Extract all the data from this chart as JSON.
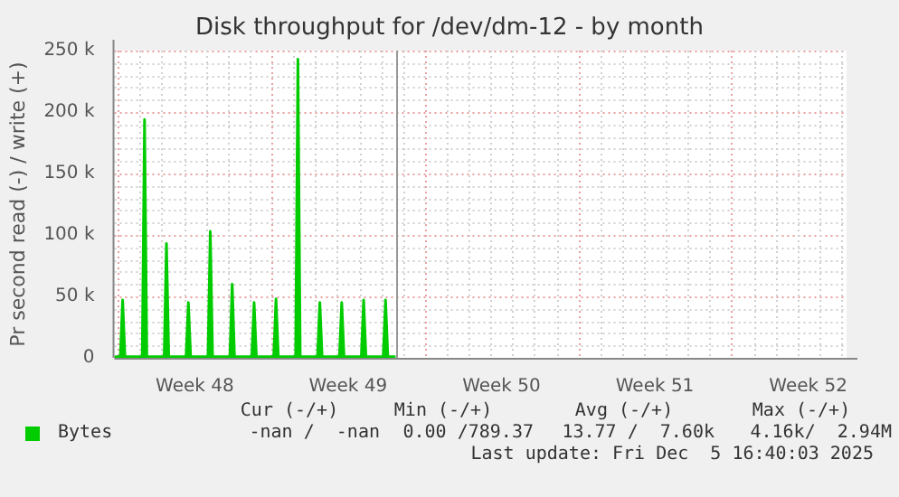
{
  "chart_data": {
    "type": "area",
    "title": "Disk throughput for /dev/dm-12 - by month",
    "ylabel": "Pr second read (-) / write (+)",
    "series": [
      {
        "name": "Bytes",
        "color": "#00cc00",
        "x": [
          "2025-11-22T20:00",
          "2025-11-23T02:30",
          "2025-11-23T05:00",
          "2025-11-23T07:30",
          "2025-11-24T02:30",
          "2025-11-24T05:00",
          "2025-11-24T07:30",
          "2025-11-25T02:30",
          "2025-11-25T05:00",
          "2025-11-25T07:30",
          "2025-11-26T02:30",
          "2025-11-26T05:00",
          "2025-11-26T07:30",
          "2025-11-27T02:30",
          "2025-11-27T05:00",
          "2025-11-27T07:30",
          "2025-11-28T02:30",
          "2025-11-28T05:00",
          "2025-11-28T07:30",
          "2025-11-29T02:30",
          "2025-11-29T05:00",
          "2025-11-29T07:30",
          "2025-11-30T02:30",
          "2025-11-30T05:00",
          "2025-11-30T07:30",
          "2025-12-01T02:30",
          "2025-12-01T05:00",
          "2025-12-01T07:30",
          "2025-12-02T02:30",
          "2025-12-02T05:00",
          "2025-12-02T07:30",
          "2025-12-03T02:30",
          "2025-12-03T05:00",
          "2025-12-03T07:30",
          "2025-12-04T02:30",
          "2025-12-04T05:00",
          "2025-12-04T07:30",
          "2025-12-05T02:30",
          "2025-12-05T05:00",
          "2025-12-05T07:30",
          "2025-12-05T16:00"
        ],
        "values": [
          1000,
          1000,
          47000,
          1000,
          1000,
          194000,
          1000,
          1000,
          93000,
          1000,
          1000,
          45000,
          1000,
          1000,
          103000,
          1000,
          1000,
          60000,
          1000,
          1000,
          45000,
          1000,
          1000,
          48000,
          1000,
          1000,
          243000,
          1000,
          1000,
          45000,
          1000,
          1000,
          45000,
          1000,
          1000,
          47000,
          1000,
          1000,
          47000,
          1000,
          1000
        ]
      }
    ],
    "xlim": [
      "2025-11-22T20:00",
      "2025-12-26T06:00"
    ],
    "xticks": [
      {
        "value": "2025-11-23",
        "label": null
      },
      {
        "value": "2025-11-24",
        "label": null
      },
      {
        "value": "2025-11-25",
        "label": null
      },
      {
        "value": "2025-11-26",
        "label": null
      },
      {
        "value": "2025-11-26T12:00",
        "label": "Week 48"
      },
      {
        "value": "2025-11-27",
        "label": null
      },
      {
        "value": "2025-11-28",
        "label": null
      },
      {
        "value": "2025-11-29",
        "label": null
      },
      {
        "value": "2025-11-30",
        "label": null
      },
      {
        "value": "2025-12-01",
        "label": null
      },
      {
        "value": "2025-12-02",
        "label": null
      },
      {
        "value": "2025-12-03",
        "label": null
      },
      {
        "value": "2025-12-03T12:00",
        "label": "Week 49"
      },
      {
        "value": "2025-12-04",
        "label": null
      },
      {
        "value": "2025-12-05",
        "label": null
      },
      {
        "value": "2025-12-06",
        "label": null
      },
      {
        "value": "2025-12-07",
        "label": null
      },
      {
        "value": "2025-12-08",
        "label": null
      },
      {
        "value": "2025-12-09",
        "label": null
      },
      {
        "value": "2025-12-10",
        "label": null
      },
      {
        "value": "2025-12-10T12:00",
        "label": "Week 50"
      },
      {
        "value": "2025-12-11",
        "label": null
      },
      {
        "value": "2025-12-12",
        "label": null
      },
      {
        "value": "2025-12-13",
        "label": null
      },
      {
        "value": "2025-12-14",
        "label": null
      },
      {
        "value": "2025-12-15",
        "label": null
      },
      {
        "value": "2025-12-16",
        "label": null
      },
      {
        "value": "2025-12-17",
        "label": null
      },
      {
        "value": "2025-12-17T12:00",
        "label": "Week 51"
      },
      {
        "value": "2025-12-18",
        "label": null
      },
      {
        "value": "2025-12-19",
        "label": null
      },
      {
        "value": "2025-12-20",
        "label": null
      },
      {
        "value": "2025-12-21",
        "label": null
      },
      {
        "value": "2025-12-22",
        "label": null
      },
      {
        "value": "2025-12-23",
        "label": null
      },
      {
        "value": "2025-12-24",
        "label": null
      },
      {
        "value": "2025-12-24T12:00",
        "label": "Week 52"
      },
      {
        "value": "2025-12-25",
        "label": null
      },
      {
        "value": "2025-12-26",
        "label": null
      }
    ],
    "ylim": [
      0,
      250000
    ],
    "yticks": [
      {
        "value": 0,
        "label": "0"
      },
      {
        "value": 50000,
        "label": "50 k"
      },
      {
        "value": 100000,
        "label": "100 k"
      },
      {
        "value": 150000,
        "label": "150 k"
      },
      {
        "value": 200000,
        "label": "200 k"
      },
      {
        "value": 250000,
        "label": "250 k"
      }
    ],
    "ref_lines": [
      {
        "axis": "x",
        "value": "2025-12-05T16:00",
        "color": "#999999"
      }
    ],
    "grid": true,
    "legend": "bottom",
    "marker": "none",
    "line_style": "solid",
    "annotations": [
      "Cur (-/+)",
      "Min (-/+)",
      "Avg (-/+)",
      "Max (-/+)",
      "-nan /  -nan",
      "0.00 /789.37",
      "13.77 /  7.60k",
      "4.16k/  2.94M",
      "Last update: Fri Dec  5 16:40:03 2025"
    ]
  }
}
